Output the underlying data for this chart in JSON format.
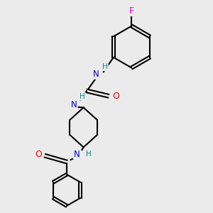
{
  "background_color": "#ebebeb",
  "bond_color": "#000000",
  "atom_colors": {
    "N": "#0000cc",
    "O": "#ff0000",
    "F": "#ee00ee",
    "C": "#000000",
    "H": "#008888"
  },
  "figsize": [
    3.0,
    3.0
  ],
  "dpi": 100,
  "xlim": [
    0,
    10
  ],
  "ylim": [
    0,
    10
  ]
}
